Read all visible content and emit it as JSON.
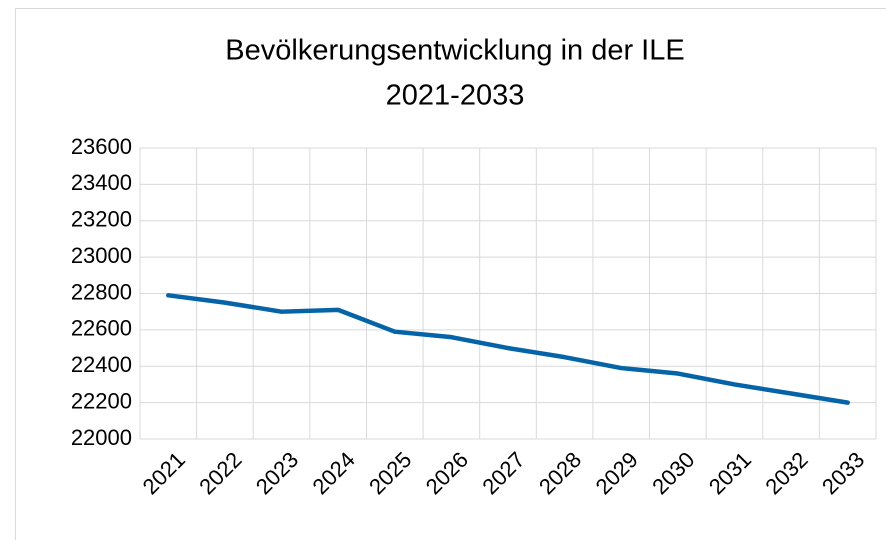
{
  "chart_data": {
    "type": "line",
    "title_lines": [
      "Bevölkerungsentwicklung in der ILE",
      "2021-2033"
    ],
    "categories": [
      "2021",
      "2022",
      "2023",
      "2024",
      "2025",
      "2026",
      "2027",
      "2028",
      "2029",
      "2030",
      "2031",
      "2032",
      "2033"
    ],
    "values": [
      22790,
      22750,
      22700,
      22710,
      22590,
      22560,
      22500,
      22450,
      22390,
      22360,
      22300,
      22250,
      22200
    ],
    "color": "#0563a8",
    "ylim": [
      22000,
      23600
    ],
    "yticks": [
      22000,
      22200,
      22400,
      22600,
      22800,
      23000,
      23200,
      23400,
      23600
    ],
    "grid": true
  }
}
